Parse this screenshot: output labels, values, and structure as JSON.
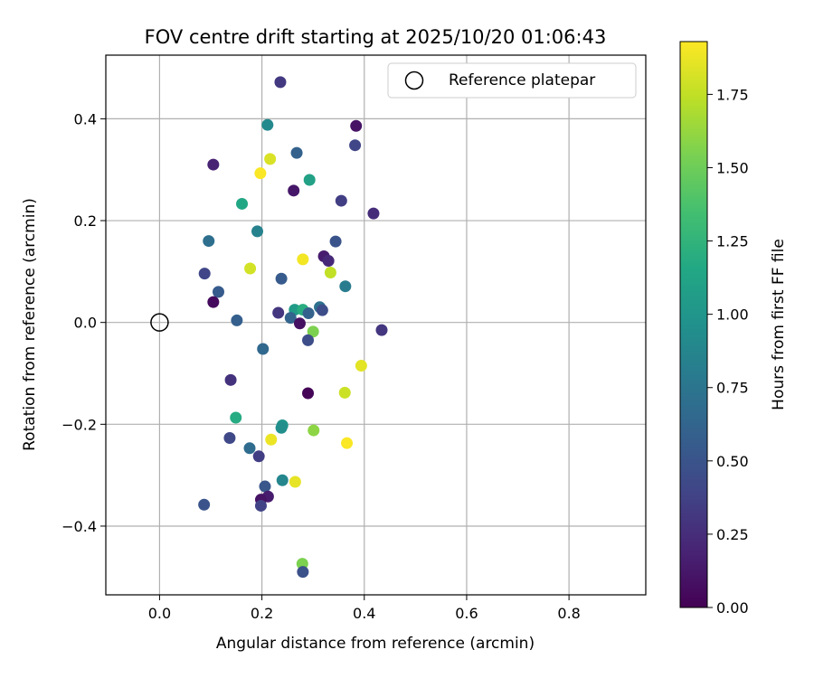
{
  "chart_data": {
    "type": "scatter",
    "title": "FOV centre drift starting at 2025/10/20 01:06:43",
    "xlabel": "Angular distance from reference (arcmin)",
    "ylabel": "Rotation from reference (arcmin)",
    "xlim": [
      -0.105,
      0.95
    ],
    "ylim": [
      -0.535,
      0.525
    ],
    "xticks": [
      0.0,
      0.2,
      0.4,
      0.6,
      0.8
    ],
    "yticks": [
      -0.4,
      -0.2,
      0.0,
      0.2,
      0.4
    ],
    "xtick_labels": [
      "0.0",
      "0.2",
      "0.4",
      "0.6",
      "0.8"
    ],
    "ytick_labels": [
      "−0.4",
      "−0.2",
      "0.0",
      "0.2",
      "0.4"
    ],
    "grid": true,
    "legend": {
      "entries": [
        "Reference platepar"
      ],
      "placement": "top-right"
    },
    "reference_point": {
      "x": 0.0,
      "y": 0.0,
      "marker": "open-circle"
    },
    "colorbar": {
      "label": "Hours from first FF file",
      "colormap": "viridis",
      "range": [
        0.0,
        1.93
      ],
      "ticks": [
        0.0,
        0.25,
        0.5,
        0.75,
        1.0,
        1.25,
        1.5,
        1.75
      ],
      "tick_labels": [
        "0.00",
        "0.25",
        "0.50",
        "0.75",
        "1.00",
        "1.25",
        "1.50",
        "1.75"
      ]
    },
    "points": [
      {
        "x": 0.236,
        "y": 0.472,
        "c": 0.32
      },
      {
        "x": 0.211,
        "y": 0.388,
        "c": 0.9
      },
      {
        "x": 0.384,
        "y": 0.386,
        "c": 0.1
      },
      {
        "x": 0.382,
        "y": 0.348,
        "c": 0.4
      },
      {
        "x": 0.268,
        "y": 0.333,
        "c": 0.6
      },
      {
        "x": 0.216,
        "y": 0.321,
        "c": 1.82
      },
      {
        "x": 0.105,
        "y": 0.31,
        "c": 0.18
      },
      {
        "x": 0.197,
        "y": 0.293,
        "c": 1.92
      },
      {
        "x": 0.293,
        "y": 0.28,
        "c": 1.1
      },
      {
        "x": 0.262,
        "y": 0.259,
        "c": 0.12
      },
      {
        "x": 0.355,
        "y": 0.239,
        "c": 0.35
      },
      {
        "x": 0.161,
        "y": 0.233,
        "c": 1.15
      },
      {
        "x": 0.418,
        "y": 0.214,
        "c": 0.25
      },
      {
        "x": 0.191,
        "y": 0.179,
        "c": 0.85
      },
      {
        "x": 0.096,
        "y": 0.16,
        "c": 0.7
      },
      {
        "x": 0.344,
        "y": 0.159,
        "c": 0.5
      },
      {
        "x": 0.321,
        "y": 0.13,
        "c": 0.15
      },
      {
        "x": 0.33,
        "y": 0.121,
        "c": 0.22
      },
      {
        "x": 0.28,
        "y": 0.124,
        "c": 1.9
      },
      {
        "x": 0.177,
        "y": 0.106,
        "c": 1.8
      },
      {
        "x": 0.334,
        "y": 0.098,
        "c": 1.75
      },
      {
        "x": 0.088,
        "y": 0.096,
        "c": 0.4
      },
      {
        "x": 0.238,
        "y": 0.086,
        "c": 0.55
      },
      {
        "x": 0.363,
        "y": 0.071,
        "c": 0.8
      },
      {
        "x": 0.115,
        "y": 0.06,
        "c": 0.55
      },
      {
        "x": 0.105,
        "y": 0.04,
        "c": 0.05
      },
      {
        "x": 0.313,
        "y": 0.03,
        "c": 0.72
      },
      {
        "x": 0.264,
        "y": 0.025,
        "c": 1.05
      },
      {
        "x": 0.28,
        "y": 0.025,
        "c": 1.2
      },
      {
        "x": 0.318,
        "y": 0.024,
        "c": 0.45
      },
      {
        "x": 0.232,
        "y": 0.019,
        "c": 0.3
      },
      {
        "x": 0.291,
        "y": 0.018,
        "c": 0.6
      },
      {
        "x": 0.256,
        "y": 0.009,
        "c": 0.62
      },
      {
        "x": 0.151,
        "y": 0.004,
        "c": 0.58
      },
      {
        "x": 0.274,
        "y": -0.002,
        "c": 0.08
      },
      {
        "x": 0.434,
        "y": -0.015,
        "c": 0.3
      },
      {
        "x": 0.3,
        "y": -0.018,
        "c": 1.55
      },
      {
        "x": 0.29,
        "y": -0.035,
        "c": 0.45
      },
      {
        "x": 0.202,
        "y": -0.052,
        "c": 0.65
      },
      {
        "x": 0.394,
        "y": -0.085,
        "c": 1.85
      },
      {
        "x": 0.139,
        "y": -0.113,
        "c": 0.28
      },
      {
        "x": 0.29,
        "y": -0.139,
        "c": 0.02
      },
      {
        "x": 0.362,
        "y": -0.138,
        "c": 1.78
      },
      {
        "x": 0.149,
        "y": -0.187,
        "c": 1.18
      },
      {
        "x": 0.24,
        "y": -0.202,
        "c": 1.0
      },
      {
        "x": 0.238,
        "y": -0.207,
        "c": 0.95
      },
      {
        "x": 0.301,
        "y": -0.212,
        "c": 1.6
      },
      {
        "x": 0.218,
        "y": -0.23,
        "c": 1.88
      },
      {
        "x": 0.137,
        "y": -0.227,
        "c": 0.42
      },
      {
        "x": 0.366,
        "y": -0.237,
        "c": 1.92
      },
      {
        "x": 0.176,
        "y": -0.247,
        "c": 0.68
      },
      {
        "x": 0.194,
        "y": -0.263,
        "c": 0.35
      },
      {
        "x": 0.24,
        "y": -0.31,
        "c": 0.88
      },
      {
        "x": 0.265,
        "y": -0.313,
        "c": 1.86
      },
      {
        "x": 0.206,
        "y": -0.322,
        "c": 0.52
      },
      {
        "x": 0.212,
        "y": -0.342,
        "c": 0.15
      },
      {
        "x": 0.198,
        "y": -0.348,
        "c": 0.1
      },
      {
        "x": 0.087,
        "y": -0.358,
        "c": 0.5
      },
      {
        "x": 0.198,
        "y": -0.36,
        "c": 0.38
      },
      {
        "x": 0.279,
        "y": -0.474,
        "c": 1.55
      },
      {
        "x": 0.28,
        "y": -0.49,
        "c": 0.48
      }
    ]
  }
}
